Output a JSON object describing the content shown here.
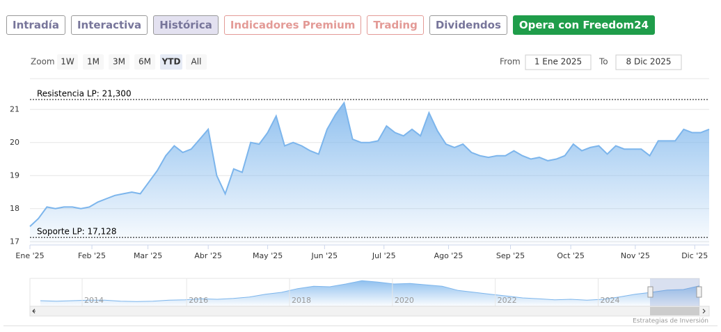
{
  "tabs": [
    "Intradía",
    "Interactiva",
    "Histórica",
    "Indicadores Premium",
    "Trading",
    "Dividendos",
    "Opera con Freedom24"
  ],
  "zoom": {
    "label": "Zoom",
    "buttons": [
      "1W",
      "1M",
      "3M",
      "6M",
      "YTD",
      "All"
    ]
  },
  "range": {
    "from_label": "From",
    "from": "1 Ene 2025",
    "to_label": "To",
    "to": "8 Dic 2025"
  },
  "credits": "Estrategias de Inversión",
  "chart_data": [
    {
      "type": "area",
      "color": "#7cb5ec",
      "values": [
        17.46,
        17.7,
        18.05,
        18.0,
        18.05,
        18.05,
        18.0,
        18.05,
        18.2,
        18.3,
        18.4,
        18.45,
        18.5,
        18.45,
        18.8,
        19.15,
        19.6,
        19.9,
        19.7,
        19.8,
        20.1,
        20.4,
        19.0,
        18.45,
        19.2,
        19.1,
        20.0,
        19.95,
        20.3,
        20.8,
        19.9,
        20.0,
        19.9,
        19.75,
        19.65,
        20.4,
        20.85,
        21.2,
        20.1,
        20.0,
        20.0,
        20.05,
        20.5,
        20.3,
        20.2,
        20.4,
        20.2,
        20.9,
        20.35,
        19.95,
        19.85,
        19.95,
        19.7,
        19.6,
        19.55,
        19.6,
        19.6,
        19.75,
        19.6,
        19.5,
        19.55,
        19.45,
        19.5,
        19.6,
        19.95,
        19.75,
        19.85,
        19.9,
        19.65,
        19.9,
        19.8,
        19.8,
        19.8,
        19.6,
        20.05,
        20.05,
        20.05,
        20.4,
        20.3,
        20.3,
        20.4
      ],
      "xlim": [
        0,
        80
      ],
      "xticks": [
        {
          "value": 0,
          "label": "Ene '25"
        },
        {
          "value": 7.3,
          "label": "Feb '25"
        },
        {
          "value": 13.9,
          "label": "Mar '25"
        },
        {
          "value": 21.0,
          "label": "Abr '25"
        },
        {
          "value": 28.0,
          "label": "May '25"
        },
        {
          "value": 34.7,
          "label": "Jun '25"
        },
        {
          "value": 41.7,
          "label": "Jul '25"
        },
        {
          "value": 49.3,
          "label": "Ago '25"
        },
        {
          "value": 56.6,
          "label": "Sep '25"
        },
        {
          "value": 63.7,
          "label": "Oct '25"
        },
        {
          "value": 71.3,
          "label": "Nov '25"
        },
        {
          "value": 78.3,
          "label": "Dic '25"
        }
      ],
      "ylim": [
        16.9,
        21.9
      ],
      "yticks": [
        17,
        18,
        19,
        20,
        21
      ],
      "grid": true,
      "plot_lines": [
        {
          "value": 21.3,
          "label": "Resistencia LP: 21,300"
        },
        {
          "value": 17.128,
          "label": "Soporte LP: 17,128"
        }
      ]
    },
    {
      "type": "area",
      "color": "#7cb5ec",
      "values": [
        17.2,
        17.1,
        17.2,
        17.3,
        17.3,
        17.1,
        17.0,
        17.1,
        17.3,
        17.4,
        17.6,
        17.5,
        17.7,
        18.0,
        18.6,
        19.0,
        19.8,
        20.3,
        20.2,
        20.8,
        21.5,
        21.2,
        20.8,
        20.9,
        20.6,
        20.3,
        19.4,
        19.0,
        18.6,
        18.2,
        17.8,
        17.6,
        17.4,
        17.5,
        17.3,
        17.5,
        18.0,
        18.6,
        19.0,
        19.5,
        19.6,
        20.4
      ],
      "xlim": [
        0,
        41
      ],
      "ylim": [
        16,
        22
      ],
      "xticks": [
        {
          "value": 2.6,
          "label": "2014"
        },
        {
          "value": 9.1,
          "label": "2016"
        },
        {
          "value": 15.5,
          "label": "2018"
        },
        {
          "value": 21.9,
          "label": "2020"
        },
        {
          "value": 28.3,
          "label": "2022"
        },
        {
          "value": 34.7,
          "label": "2024"
        }
      ]
    }
  ]
}
